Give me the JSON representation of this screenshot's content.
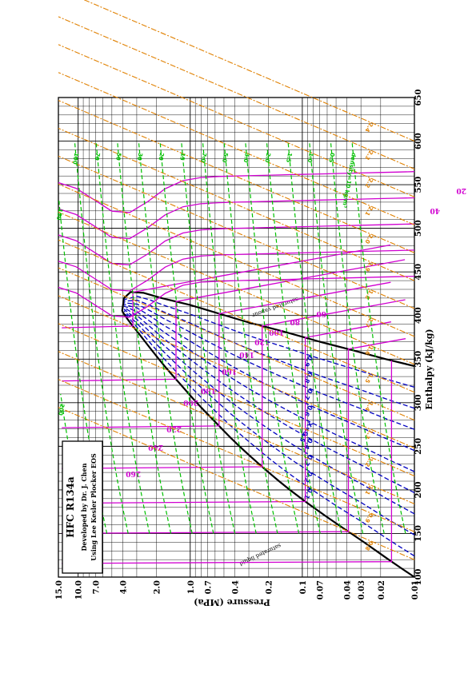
{
  "chart_data": {
    "type": "line",
    "title": "HFC R134a",
    "info": {
      "line1": "HFC    R134a",
      "line2": "Developed by Dr. J. Chen",
      "line3": "Using Lee Kesler Plocker EOS"
    },
    "xlabel": "Enthalpy  (kJ/kg)",
    "ylabel": "Pressure  (MPa)",
    "x_ticks": [
      "100",
      "150",
      "200",
      "250",
      "300",
      "350",
      "400",
      "450",
      "500",
      "550",
      "600",
      "650"
    ],
    "y_ticks": [
      "0.01",
      "0.02",
      "0.03",
      "0.04",
      "0.07",
      "0.1",
      "0.2",
      "0.4",
      "0.7",
      "1.0",
      "2.0",
      "4.0",
      "7.0",
      "10.0",
      "15.0"
    ],
    "x_range": [
      100,
      650
    ],
    "y_range": [
      0.01,
      15
    ],
    "y_scale": "log",
    "saturation_dome": {
      "liquid_label": "saturated liquid",
      "vapour_label": "saturated vapour",
      "liquid": [
        [
          100,
          0.01
        ],
        [
          120,
          0.017
        ],
        [
          140,
          0.028
        ],
        [
          160,
          0.048
        ],
        [
          180,
          0.08
        ],
        [
          200,
          0.13
        ],
        [
          220,
          0.2
        ],
        [
          240,
          0.3
        ],
        [
          260,
          0.44
        ],
        [
          280,
          0.62
        ],
        [
          300,
          0.88
        ],
        [
          320,
          1.2
        ],
        [
          340,
          1.65
        ],
        [
          360,
          2.2
        ],
        [
          380,
          2.9
        ],
        [
          395,
          3.6
        ],
        [
          405,
          4.05
        ]
      ],
      "vapour": [
        [
          405,
          4.05
        ],
        [
          420,
          3.9
        ],
        [
          427,
          3.4
        ],
        [
          426,
          2.6
        ],
        [
          420,
          1.8
        ],
        [
          412,
          1.0
        ],
        [
          402,
          0.55
        ],
        [
          392,
          0.3
        ],
        [
          382,
          0.15
        ],
        [
          370,
          0.07
        ],
        [
          360,
          0.035
        ],
        [
          350,
          0.018
        ],
        [
          342,
          0.01
        ]
      ]
    },
    "isotherm_series": {
      "name": "isotherms",
      "color": "#d000d0",
      "labels": [
        "T=-60 °C",
        "-40",
        "-20",
        "0",
        "20",
        "40",
        "60",
        "80",
        "100",
        "120",
        "140",
        "160",
        "180",
        "200",
        "220",
        "240",
        "260",
        "280",
        "T=0 °C",
        "20",
        "40",
        "60",
        "80",
        "100",
        "120",
        "140",
        "160",
        "180",
        "200"
      ],
      "liquid_x": [
        -60,
        -40,
        -20,
        0,
        20,
        40
      ],
      "liquid_values_h": [
        115,
        140,
        165,
        200,
        230,
        260
      ]
    },
    "quality_series": {
      "name": "quality lines",
      "color": "#0000c0",
      "labels": [
        "0.1",
        "0.2",
        "0.3",
        "0.4",
        "X=0.5",
        "0.6",
        "0.7",
        "0.8",
        "0.9"
      ]
    },
    "entropy_series": {
      "name": "entropy lines",
      "color": "#e08000",
      "labels": [
        "s=1.0 kJ/kgK",
        "0.8",
        "0.9",
        "1.1",
        "1.2",
        "1.3",
        "1.4",
        "1.5",
        "1.6",
        "1.7",
        "1.8",
        "1.9",
        "2.0",
        "2.1",
        "2.2",
        "2.3",
        "2.4",
        "2.5"
      ]
    },
    "density_series": {
      "name": "density lines",
      "color": "#00c000",
      "labels": [
        "density=10 kg/m³",
        "0.5",
        "1.0",
        "1.5",
        "2.0",
        "3.0",
        "5.0",
        "7.0",
        "15",
        "20",
        "30",
        "50",
        "70",
        "100",
        "150",
        "200",
        "300"
      ]
    },
    "grid": true
  }
}
